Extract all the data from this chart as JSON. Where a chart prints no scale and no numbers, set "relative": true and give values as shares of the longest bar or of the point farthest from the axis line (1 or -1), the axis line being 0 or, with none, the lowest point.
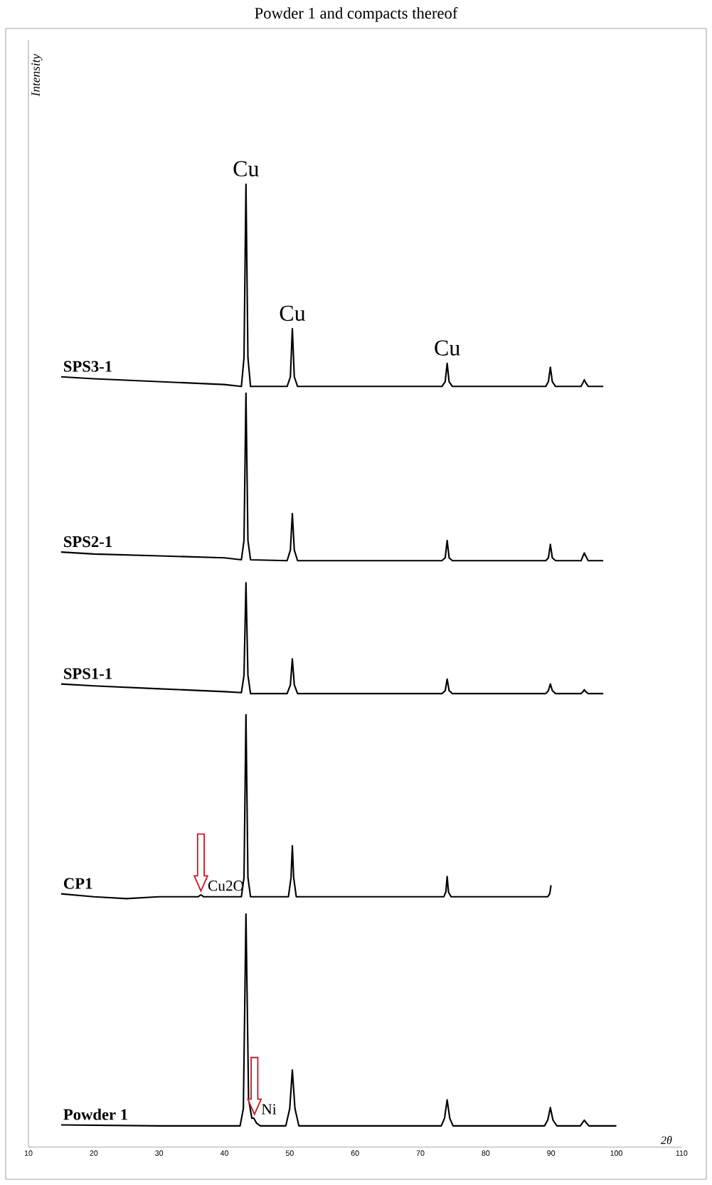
{
  "chart_data": {
    "type": "line",
    "title": "Powder 1 and compacts thereof",
    "xlabel": "2θ",
    "relative": true,
    "xlim": [
      10,
      110
    ],
    "xticks": [
      10,
      20,
      30,
      40,
      50,
      60,
      70,
      80,
      90,
      100,
      110
    ],
    "tick_labels": "x",
    "grid": false,
    "legend": false,
    "series": [
      {
        "name": "SPS3-1",
        "color": "#000000",
        "x": [
          15,
          20,
          30,
          40,
          42.6,
          43.0,
          43.3,
          43.6,
          44.0,
          49.6,
          50.1,
          50.4,
          50.7,
          51.2,
          73.3,
          73.8,
          74.1,
          74.4,
          74.9,
          89.2,
          89.6,
          89.9,
          90.2,
          90.7,
          94.6,
          94.9,
          95.1,
          95.3,
          95.7,
          98
        ],
        "values": [
          0.8,
          0.798,
          0.795,
          0.792,
          0.79,
          0.82,
          1,
          0.82,
          0.79,
          0.79,
          0.8,
          0.85,
          0.8,
          0.79,
          0.79,
          0.795,
          0.814,
          0.795,
          0.79,
          0.79,
          0.795,
          0.81,
          0.795,
          0.79,
          0.79,
          0.794,
          0.797,
          0.794,
          0.79,
          0.79
        ]
      },
      {
        "name": "SPS2-1",
        "color": "#000000",
        "x": [
          15,
          20,
          30,
          40,
          42.6,
          43.0,
          43.3,
          43.6,
          44.0,
          49.6,
          50.1,
          50.4,
          50.7,
          51.2,
          73.3,
          73.8,
          74.1,
          74.4,
          74.9,
          89.2,
          89.6,
          89.9,
          90.2,
          90.7,
          94.6,
          94.9,
          95.1,
          95.3,
          95.7,
          98
        ],
        "values": [
          0.618,
          0.616,
          0.614,
          0.612,
          0.61,
          0.63,
          0.783,
          0.63,
          0.61,
          0.609,
          0.62,
          0.658,
          0.62,
          0.609,
          0.609,
          0.612,
          0.63,
          0.612,
          0.609,
          0.609,
          0.612,
          0.626,
          0.612,
          0.609,
          0.609,
          0.614,
          0.617,
          0.614,
          0.609,
          0.609
        ]
      },
      {
        "name": "SPS1-1",
        "color": "#000000",
        "x": [
          15,
          20,
          30,
          40,
          42.6,
          43.0,
          43.3,
          43.6,
          44.0,
          49.6,
          50.1,
          50.4,
          50.7,
          51.2,
          73.3,
          73.8,
          74.1,
          74.4,
          74.9,
          89.2,
          89.6,
          89.9,
          90.2,
          90.7,
          94.6,
          94.9,
          95.1,
          95.3,
          95.7,
          98
        ],
        "values": [
          0.481,
          0.479,
          0.476,
          0.473,
          0.472,
          0.49,
          0.586,
          0.49,
          0.471,
          0.471,
          0.48,
          0.507,
          0.48,
          0.471,
          0.471,
          0.474,
          0.486,
          0.474,
          0.471,
          0.471,
          0.474,
          0.481,
          0.474,
          0.471,
          0.471,
          0.473,
          0.475,
          0.473,
          0.471,
          0.471
        ]
      },
      {
        "name": "CP1",
        "color": "#000000",
        "x": [
          15,
          20,
          25,
          30,
          36.0,
          36.4,
          36.8,
          42.6,
          43.0,
          43.3,
          43.6,
          44.0,
          49.8,
          50.2,
          50.4,
          50.6,
          51.0,
          73.6,
          73.9,
          74.1,
          74.3,
          74.7,
          89.5,
          89.8,
          90
        ],
        "values": [
          0.263,
          0.26,
          0.258,
          0.26,
          0.26,
          0.262,
          0.26,
          0.26,
          0.28,
          0.449,
          0.28,
          0.26,
          0.26,
          0.28,
          0.313,
          0.28,
          0.26,
          0.26,
          0.265,
          0.281,
          0.265,
          0.26,
          0.26,
          0.263,
          0.272
        ]
      },
      {
        "name": "Powder 1",
        "color": "#000000",
        "x": [
          15,
          30,
          40,
          42.4,
          42.9,
          43.3,
          43.7,
          44.2,
          44.5,
          44.9,
          45.5,
          49.4,
          50.0,
          50.4,
          50.8,
          51.4,
          73.2,
          73.7,
          74.1,
          74.5,
          75.0,
          89.0,
          89.5,
          89.9,
          90.3,
          90.9,
          94.5,
          94.9,
          95.1,
          95.3,
          95.8,
          100
        ],
        "values": [
          0.023,
          0.022,
          0.022,
          0.022,
          0.04,
          0.242,
          0.05,
          0.03,
          0.03,
          0.025,
          0.022,
          0.022,
          0.04,
          0.08,
          0.04,
          0.022,
          0.022,
          0.03,
          0.049,
          0.03,
          0.022,
          0.022,
          0.028,
          0.041,
          0.028,
          0.022,
          0.022,
          0.026,
          0.028,
          0.026,
          0.022,
          0.022
        ]
      }
    ],
    "annotations": [
      {
        "text": "Cu",
        "x": 43.3,
        "y": 1
      },
      {
        "text": "Cu",
        "x": 50.4,
        "y": 0.85
      },
      {
        "text": "Cu",
        "x": 74.1,
        "y": 0.814
      },
      {
        "text": "Cu2O",
        "x": 36.4,
        "y": 0.262
      },
      {
        "text": "Ni",
        "x": 44.6,
        "y": 0.03
      },
      "Intensity"
    ]
  }
}
